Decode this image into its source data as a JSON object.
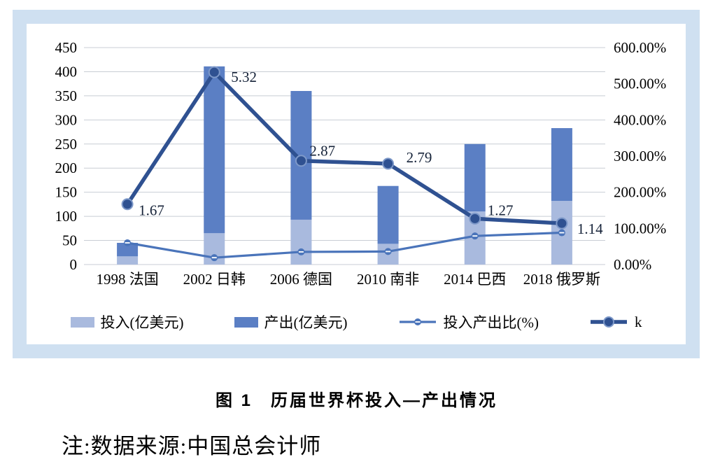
{
  "figure": {
    "caption_prefix": "图 1",
    "caption_title": "历届世界杯投入—产出情况",
    "note": "注:数据来源:中国总会计师"
  },
  "colors": {
    "frame": "#cfe0f1",
    "grid": "#c8cdd4",
    "investment_bar": "#a9bade",
    "output_bar": "#5b7fc4",
    "ratio_line": "#4a74ba",
    "k_line": "#2f5191",
    "k_marker_ring": "#7e99c9",
    "label_text": "#152238"
  },
  "chart_data": {
    "type": "bar",
    "subtype": "stacked-bars-with-lines",
    "categories": [
      "1998 法国",
      "2002 日韩",
      "2006 德国",
      "2010 南非",
      "2014 巴西",
      "2018 俄罗斯"
    ],
    "series": [
      {
        "name": "投入(亿美元)",
        "type": "bar",
        "stack": true,
        "axis": "left",
        "color": "#a9bade",
        "values": [
          17,
          65,
          93,
          43,
          110,
          132
        ]
      },
      {
        "name": "产出(亿美元)",
        "type": "bar",
        "stack": true,
        "axis": "left",
        "color": "#5b7fc4",
        "values": [
          28,
          346,
          267,
          120,
          140,
          151
        ]
      },
      {
        "name": "投入产出比(%)",
        "type": "line",
        "axis": "right",
        "color": "#4a74ba",
        "values": [
          60,
          19,
          35,
          36,
          79,
          88
        ]
      },
      {
        "name": "k",
        "type": "line",
        "axis": "right",
        "scale": 100,
        "color": "#2f5191",
        "values": [
          1.67,
          5.32,
          2.87,
          2.79,
          1.27,
          1.14
        ],
        "labels": [
          "1.67",
          "5.32",
          "2.87",
          "2.79",
          "1.27",
          "1.14"
        ]
      }
    ],
    "left_axis": {
      "min": 0,
      "max": 450,
      "step": 50,
      "ticks": [
        "450",
        "400",
        "350",
        "300",
        "250",
        "200",
        "150",
        "100",
        "50",
        "0"
      ]
    },
    "right_axis": {
      "min": 0,
      "max": 600,
      "step": 100,
      "ticks": [
        "600.00%",
        "500.00%",
        "400.00%",
        "300.00%",
        "200.00%",
        "100.00%",
        "0.00%"
      ]
    },
    "grid": true,
    "legend_position": "bottom"
  }
}
